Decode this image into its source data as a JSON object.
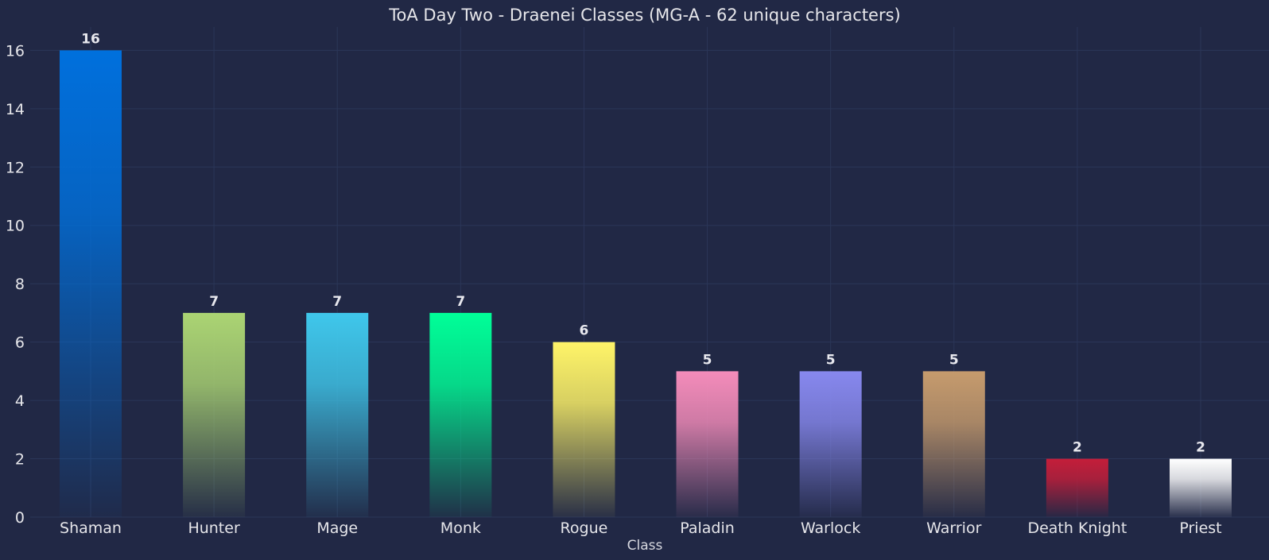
{
  "chart_data": {
    "type": "bar",
    "title": "ToA Day Two - Draenei Classes (MG-A - 62 unique characters)",
    "xlabel": "Class",
    "ylabel": "",
    "categories": [
      "Shaman",
      "Hunter",
      "Mage",
      "Monk",
      "Rogue",
      "Paladin",
      "Warlock",
      "Warrior",
      "Death Knight",
      "Priest"
    ],
    "values": [
      16,
      7,
      7,
      7,
      6,
      5,
      5,
      5,
      2,
      2
    ],
    "colors": [
      "#0070DD",
      "#ABD473",
      "#3FC7EB",
      "#00FF98",
      "#FFF468",
      "#F48CBA",
      "#8788EE",
      "#C69B6D",
      "#C41E3A",
      "#FFFFFF"
    ],
    "ylim": [
      0,
      16.8
    ],
    "yticks": [
      0,
      2,
      4,
      6,
      8,
      10,
      12,
      14,
      16
    ],
    "grid": true,
    "bar_labels": true,
    "bar_style": "vertical gradient fading to background"
  },
  "colors": {
    "background": "#212845",
    "grid": "#2b3658",
    "text": "#e6e6ea"
  }
}
